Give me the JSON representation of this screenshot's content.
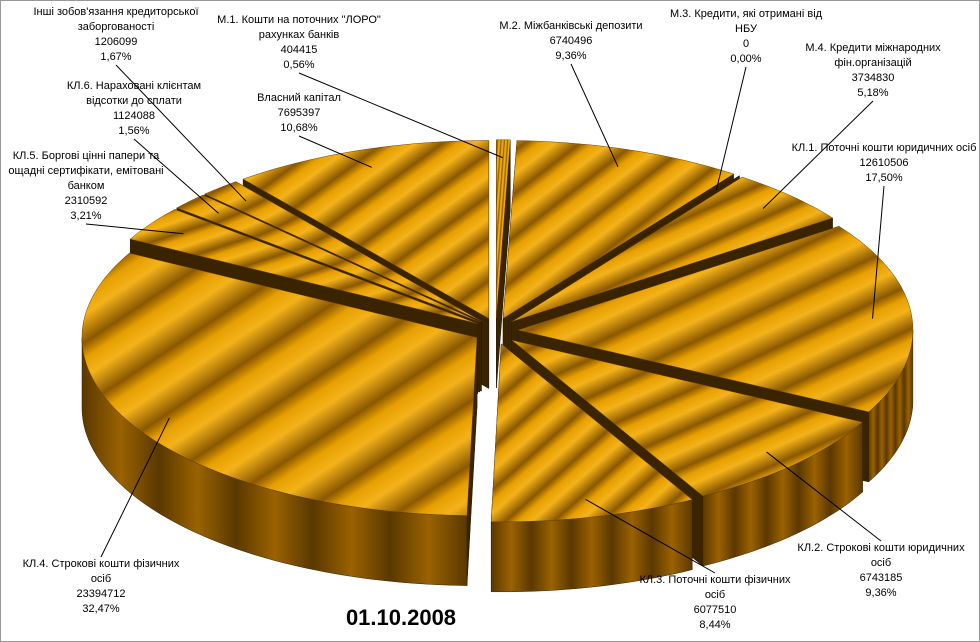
{
  "chart_data": {
    "type": "pie3d",
    "title": "01.10.2008",
    "categories": [
      "М.1. Кошти на поточних \"ЛОРО\" рахунках банків",
      "М.2. Міжбанківські депозити",
      "М.3. Кредити, які отримані від НБУ",
      "М.4. Кредити міжнародних фін.організацій",
      "КЛ.1. Поточні кошти юридичних осіб",
      "КЛ.2. Строкові кошти юридичних осіб",
      "КЛ.3. Поточні кошти фізичних осіб",
      "КЛ.4. Строкові кошти фізичних осіб",
      "КЛ.5. Боргові цінні папери та ощадні сертифікати, емітовані банком",
      "КЛ.6. Нараховані клієнтам відсотки до сплати",
      "Інші зобов'язання кредиторської заборгованості",
      "Власний капітал"
    ],
    "values": [
      404415,
      6740496,
      0,
      3734830,
      12610506,
      6743185,
      6077510,
      23394712,
      2310592,
      1124088,
      1206099,
      7695397
    ],
    "percent_labels": [
      "0,56%",
      "9,36%",
      "0,00%",
      "5,18%",
      "17,50%",
      "9,36%",
      "8,44%",
      "32,47%",
      "3,21%",
      "1,56%",
      "1,67%",
      "10,68%"
    ],
    "color": "#e8a200"
  }
}
